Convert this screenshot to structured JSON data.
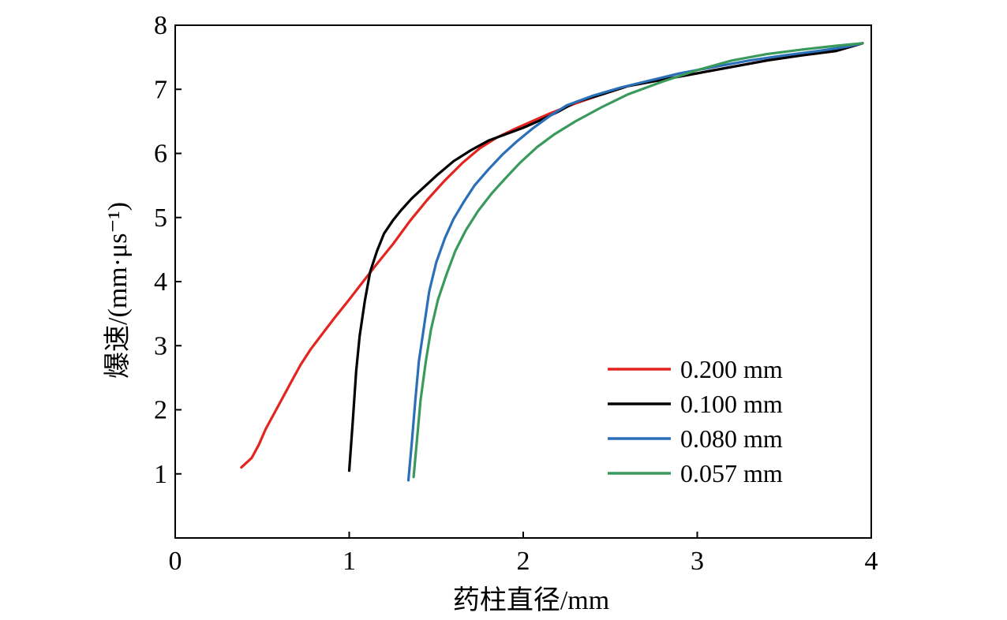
{
  "chart_data": {
    "type": "line",
    "xlabel": "药柱直径/mm",
    "ylabel": "爆速/(mm·μs⁻¹)",
    "xlim": [
      0,
      4
    ],
    "ylim": [
      0,
      8
    ],
    "xticks": [
      "0",
      "1",
      "2",
      "3",
      "4"
    ],
    "yticks": [
      "1",
      "2",
      "3",
      "4",
      "5",
      "6",
      "7",
      "8"
    ],
    "grid": false,
    "legend_position": "bottom-right",
    "series": [
      {
        "name": "0.200 mm",
        "color": "#e3241f",
        "x": [
          0.38,
          0.44,
          0.48,
          0.52,
          0.57,
          0.62,
          0.67,
          0.72,
          0.78,
          0.85,
          0.92,
          1.0,
          1.08,
          1.16,
          1.25,
          1.35,
          1.45,
          1.55,
          1.65,
          1.75,
          1.85,
          1.95,
          2.05,
          2.15,
          2.3,
          2.45,
          2.6,
          2.8,
          3.0,
          3.2,
          3.4,
          3.6,
          3.8,
          3.95
        ],
        "y": [
          1.1,
          1.25,
          1.45,
          1.7,
          1.95,
          2.2,
          2.45,
          2.7,
          2.95,
          3.2,
          3.45,
          3.72,
          4.0,
          4.28,
          4.58,
          4.95,
          5.28,
          5.58,
          5.85,
          6.08,
          6.25,
          6.38,
          6.5,
          6.62,
          6.78,
          6.92,
          7.05,
          7.15,
          7.25,
          7.35,
          7.45,
          7.53,
          7.6,
          7.72
        ]
      },
      {
        "name": "0.100 mm",
        "color": "#000000",
        "x": [
          1.0,
          1.02,
          1.04,
          1.06,
          1.09,
          1.12,
          1.16,
          1.2,
          1.25,
          1.3,
          1.36,
          1.42,
          1.5,
          1.6,
          1.7,
          1.8,
          1.9,
          2.0,
          2.1,
          2.2,
          2.3,
          2.45,
          2.6,
          2.8,
          3.0,
          3.2,
          3.4,
          3.6,
          3.8,
          3.95
        ],
        "y": [
          1.05,
          1.8,
          2.6,
          3.15,
          3.7,
          4.15,
          4.48,
          4.75,
          4.95,
          5.12,
          5.3,
          5.45,
          5.65,
          5.88,
          6.05,
          6.2,
          6.3,
          6.4,
          6.52,
          6.65,
          6.8,
          6.92,
          7.05,
          7.15,
          7.25,
          7.35,
          7.45,
          7.53,
          7.6,
          7.72
        ]
      },
      {
        "name": "0.080 mm",
        "color": "#2a6fb8",
        "x": [
          1.34,
          1.36,
          1.38,
          1.4,
          1.43,
          1.46,
          1.5,
          1.55,
          1.6,
          1.66,
          1.72,
          1.8,
          1.88,
          1.96,
          2.05,
          2.15,
          2.25,
          2.4,
          2.55,
          2.7,
          2.9,
          3.1,
          3.3,
          3.5,
          3.7,
          3.85,
          3.95
        ],
        "y": [
          0.9,
          1.5,
          2.15,
          2.75,
          3.3,
          3.85,
          4.3,
          4.68,
          4.98,
          5.25,
          5.5,
          5.75,
          5.98,
          6.18,
          6.38,
          6.58,
          6.75,
          6.9,
          7.02,
          7.12,
          7.25,
          7.35,
          7.45,
          7.53,
          7.6,
          7.66,
          7.72
        ]
      },
      {
        "name": "0.057 mm",
        "color": "#3a9a5c",
        "x": [
          1.37,
          1.39,
          1.41,
          1.44,
          1.47,
          1.51,
          1.56,
          1.61,
          1.67,
          1.74,
          1.82,
          1.9,
          1.98,
          2.08,
          2.18,
          2.3,
          2.45,
          2.6,
          2.8,
          3.0,
          3.2,
          3.4,
          3.6,
          3.8,
          3.95
        ],
        "y": [
          0.95,
          1.55,
          2.15,
          2.75,
          3.25,
          3.72,
          4.12,
          4.48,
          4.8,
          5.1,
          5.38,
          5.62,
          5.85,
          6.1,
          6.3,
          6.5,
          6.72,
          6.92,
          7.12,
          7.3,
          7.45,
          7.55,
          7.62,
          7.68,
          7.72
        ]
      }
    ]
  }
}
